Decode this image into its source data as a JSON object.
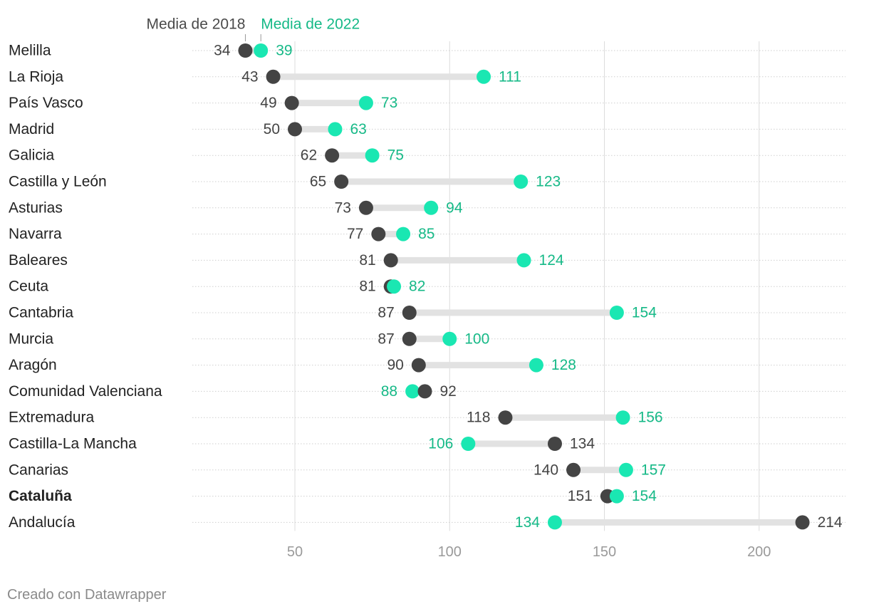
{
  "chart_data": {
    "type": "dot-range",
    "series": [
      {
        "name": "Media de 2018",
        "color": "#444444"
      },
      {
        "name": "Media de 2022",
        "color": "#1ae7b2",
        "label_color": "#16b987"
      }
    ],
    "categories": [
      "Melilla",
      "La Rioja",
      "País Vasco",
      "Madrid",
      "Galicia",
      "Castilla y León",
      "Asturias",
      "Navarra",
      "Baleares",
      "Ceuta",
      "Cantabria",
      "Murcia",
      "Aragón",
      "Comunidad Valenciana",
      "Extremadura",
      "Castilla-La Mancha",
      "Canarias",
      "Cataluña",
      "Andalucía"
    ],
    "highlight": [
      "Cataluña"
    ],
    "values_2018": [
      34,
      43,
      49,
      50,
      62,
      65,
      73,
      77,
      81,
      81,
      87,
      87,
      90,
      92,
      118,
      134,
      140,
      151,
      214
    ],
    "values_2022": [
      39,
      111,
      73,
      63,
      75,
      123,
      94,
      85,
      124,
      82,
      154,
      100,
      128,
      88,
      156,
      106,
      157,
      154,
      134
    ],
    "x_ticks": [
      50,
      100,
      150,
      200
    ],
    "x_tick_labels": [
      "50",
      "100",
      "150",
      "200"
    ],
    "xlim": [
      15,
      225
    ],
    "grid": true,
    "colors": {
      "dark": "#444444",
      "green": "#1ae7b2",
      "green_text": "#16b987",
      "bar": "#e2e2e2",
      "axis_text": "#9a9a9a",
      "label_text": "#222222"
    }
  },
  "footer": "Creado con Datawrapper"
}
